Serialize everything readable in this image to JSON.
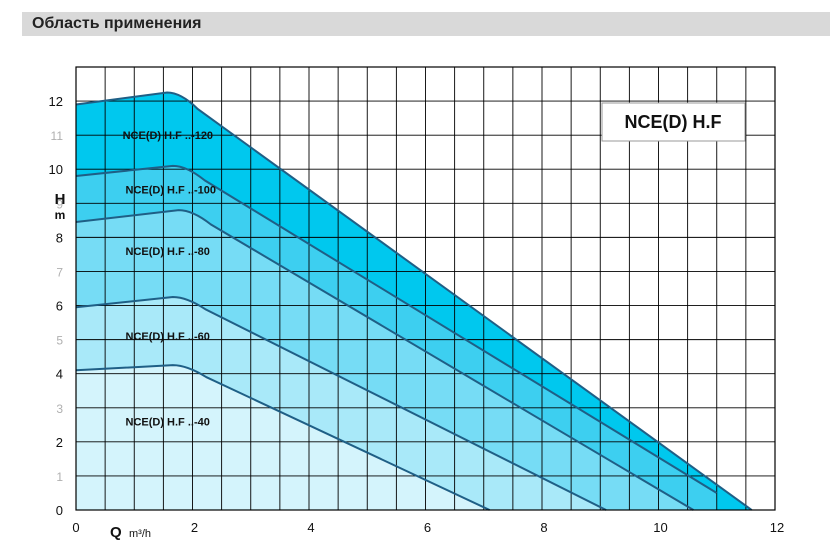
{
  "header": {
    "title": "Область применения"
  },
  "chart_data": {
    "type": "area",
    "title": "NCE(D) H.F",
    "xlabel_main": "Q",
    "xlabel_unit": "m³/h",
    "ylabel_main": "H",
    "ylabel_unit": "m",
    "xlim": [
      0,
      12
    ],
    "ylim": [
      0,
      13
    ],
    "grid": true,
    "x_ticks": [
      "0",
      "2",
      "4",
      "6",
      "8",
      "10",
      "12"
    ],
    "y_ticks_major": [
      "0",
      "2",
      "4",
      "6",
      "8",
      "10",
      "12"
    ],
    "y_ticks_minor": [
      "1",
      "3",
      "5",
      "7",
      "9",
      "11"
    ],
    "series": [
      {
        "name": "NCE(D) H.F ..-120",
        "points": [
          [
            0,
            11.9
          ],
          [
            1.7,
            12.25
          ],
          [
            11.6,
            0
          ]
        ],
        "color": "#00c8ee"
      },
      {
        "name": "NCE(D) H.F ..-100",
        "points": [
          [
            0,
            9.8
          ],
          [
            1.8,
            10.1
          ],
          [
            11.0,
            0.5
          ]
        ],
        "color": "#3dcff0"
      },
      {
        "name": "NCE(D) H.F ..-80",
        "points": [
          [
            0,
            8.45
          ],
          [
            1.9,
            8.8
          ],
          [
            10.6,
            0
          ]
        ],
        "color": "#76dcf5"
      },
      {
        "name": "NCE(D) H.F ..-60",
        "points": [
          [
            0,
            5.95
          ],
          [
            1.8,
            6.25
          ],
          [
            9.1,
            0
          ]
        ],
        "color": "#a9e9f9"
      },
      {
        "name": "NCE(D) H.F ..-40",
        "points": [
          [
            0,
            4.1
          ],
          [
            1.8,
            4.25
          ],
          [
            7.1,
            0
          ]
        ],
        "color": "#d4f4fc"
      }
    ]
  }
}
